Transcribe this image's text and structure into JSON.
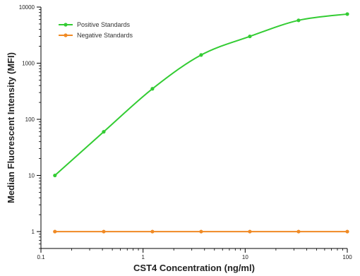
{
  "chart_data": {
    "type": "line",
    "xlabel": "CST4 Concentration (ng/ml)",
    "ylabel": "Median  Fluorescent Intensity  (MFI)",
    "xscale": "log",
    "yscale": "log",
    "xlim": [
      0.1,
      100
    ],
    "ylim": [
      0.5,
      10000
    ],
    "x_ticks": [
      0.1,
      1,
      10,
      100
    ],
    "x_tick_labels": [
      "0.1",
      "1",
      "10",
      "100"
    ],
    "y_ticks": [
      1,
      10,
      100,
      1000,
      10000
    ],
    "y_tick_labels": [
      "1",
      "10",
      "100",
      "1000",
      "10000"
    ],
    "grid": false,
    "legend_position": "top-left",
    "series": [
      {
        "name": "Positive Standards",
        "color": "#33cc33",
        "marker": "circle",
        "curve": "sigmoid-fit",
        "x": [
          0.137,
          0.412,
          1.235,
          3.704,
          11.11,
          33.33,
          100
        ],
        "y": [
          10,
          60,
          350,
          1400,
          3000,
          5800,
          7500
        ]
      },
      {
        "name": "Negative Standards",
        "color": "#f08a24",
        "marker": "circle",
        "curve": "flat",
        "x": [
          0.137,
          0.412,
          1.235,
          3.704,
          11.11,
          33.33,
          100
        ],
        "y": [
          1,
          1,
          1,
          1,
          1,
          1,
          1
        ]
      }
    ]
  }
}
